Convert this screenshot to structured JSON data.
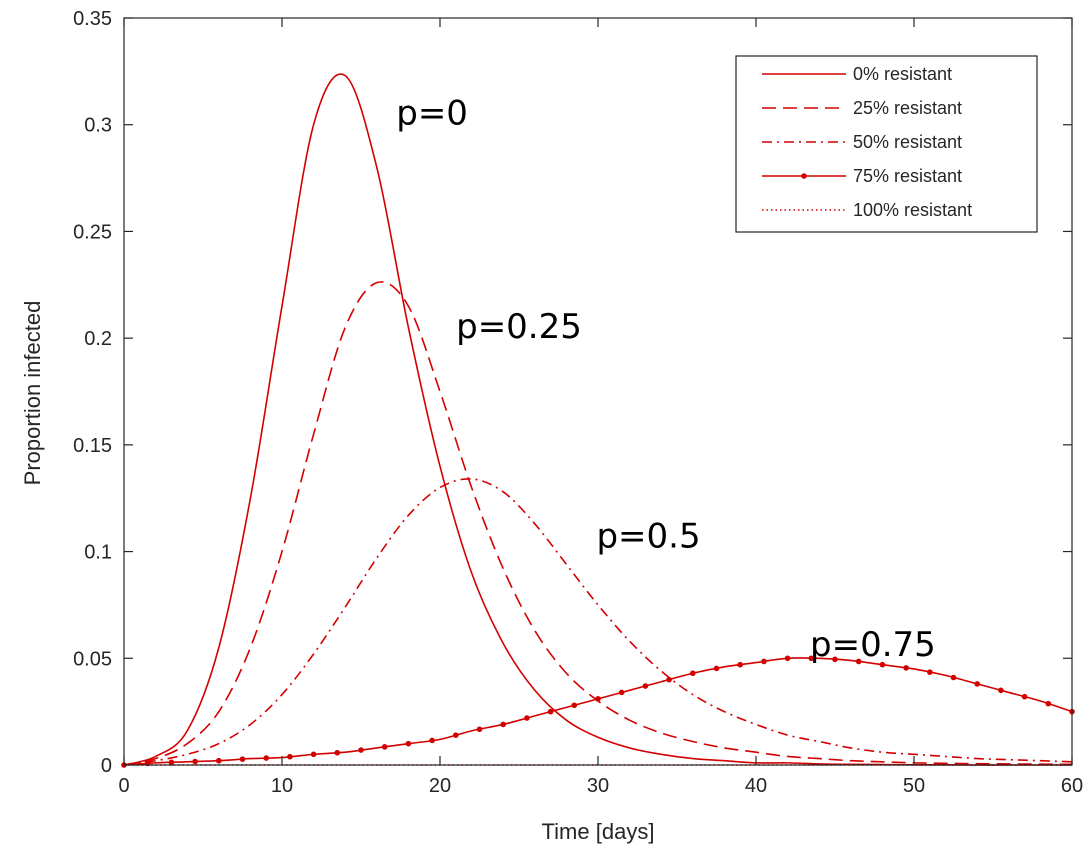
{
  "chart_data": {
    "type": "line",
    "xlabel": "Time [days]",
    "ylabel": "Proportion infected",
    "xlim": [
      0,
      60
    ],
    "ylim": [
      0,
      0.35
    ],
    "xticks": [
      0,
      10,
      20,
      30,
      40,
      50,
      60
    ],
    "xtick_labels": [
      "0",
      "10",
      "20",
      "30",
      "40",
      "50",
      "60"
    ],
    "yticks": [
      0,
      0.05,
      0.1,
      0.15,
      0.2,
      0.25,
      0.3,
      0.35
    ],
    "ytick_labels": [
      "0",
      "0.05",
      "0.1",
      "0.15",
      "0.2",
      "0.25",
      "0.3",
      "0.35"
    ],
    "grid": false,
    "legend_position": "top-right",
    "color": "#d40000",
    "x": [
      0,
      2,
      4,
      6,
      8,
      10,
      12,
      14,
      16,
      18,
      20,
      22,
      24,
      26,
      28,
      30,
      32,
      34,
      36,
      38,
      40,
      42,
      44,
      46,
      48,
      50,
      52,
      54,
      56,
      58,
      60
    ],
    "series": [
      {
        "name": "0% resistant",
        "style": "solid",
        "values": [
          0.0,
          0.004,
          0.016,
          0.055,
          0.125,
          0.215,
          0.3,
          0.323,
          0.28,
          0.205,
          0.14,
          0.09,
          0.057,
          0.035,
          0.021,
          0.013,
          0.008,
          0.005,
          0.003,
          0.002,
          0.001,
          0.001,
          0.0005,
          0.0003,
          0.0002,
          0.0001,
          0.0001,
          0.0,
          0.0,
          0.0,
          0.0
        ]
      },
      {
        "name": "25% resistant",
        "style": "dashed",
        "values": [
          0.0,
          0.003,
          0.01,
          0.025,
          0.055,
          0.1,
          0.155,
          0.205,
          0.226,
          0.215,
          0.175,
          0.13,
          0.092,
          0.063,
          0.043,
          0.03,
          0.021,
          0.015,
          0.011,
          0.008,
          0.006,
          0.004,
          0.003,
          0.002,
          0.0015,
          0.001,
          0.0008,
          0.0006,
          0.0005,
          0.0004,
          0.0003
        ]
      },
      {
        "name": "50% resistant",
        "style": "dashdot",
        "values": [
          0.0,
          0.002,
          0.005,
          0.01,
          0.019,
          0.033,
          0.052,
          0.074,
          0.097,
          0.117,
          0.13,
          0.134,
          0.128,
          0.113,
          0.094,
          0.075,
          0.058,
          0.044,
          0.033,
          0.025,
          0.019,
          0.014,
          0.011,
          0.008,
          0.006,
          0.005,
          0.004,
          0.003,
          0.0025,
          0.002,
          0.0015
        ]
      },
      {
        "name": "75% resistant",
        "style": "solid-dots",
        "values": [
          0.0,
          0.001,
          0.0015,
          0.002,
          0.003,
          0.0035,
          0.005,
          0.006,
          0.008,
          0.01,
          0.012,
          0.016,
          0.019,
          0.023,
          0.027,
          0.031,
          0.035,
          0.039,
          0.043,
          0.046,
          0.048,
          0.05,
          0.05,
          0.049,
          0.047,
          0.045,
          0.042,
          0.038,
          0.034,
          0.03,
          0.025
        ]
      },
      {
        "name": "100% resistant",
        "style": "dotted",
        "values": [
          0.0,
          0.0,
          0.0,
          0.0,
          0.0,
          0.0,
          0.0,
          0.0,
          0.0,
          0.0,
          0.0,
          0.0,
          0.0,
          0.0,
          0.0,
          0.0,
          0.0,
          0.0,
          0.0,
          0.0,
          0.0,
          0.0,
          0.0,
          0.0,
          0.0,
          0.0,
          0.0,
          0.0,
          0.0,
          0.0,
          0.0
        ]
      }
    ],
    "annotations": [
      {
        "text": "p=0",
        "x": 19.5,
        "y": 0.3
      },
      {
        "text": "p=0.25",
        "x": 25.0,
        "y": 0.2
      },
      {
        "text": "p=0.5",
        "x": 33.2,
        "y": 0.102
      },
      {
        "text": "p=0.75",
        "x": 47.4,
        "y": 0.051
      }
    ]
  }
}
